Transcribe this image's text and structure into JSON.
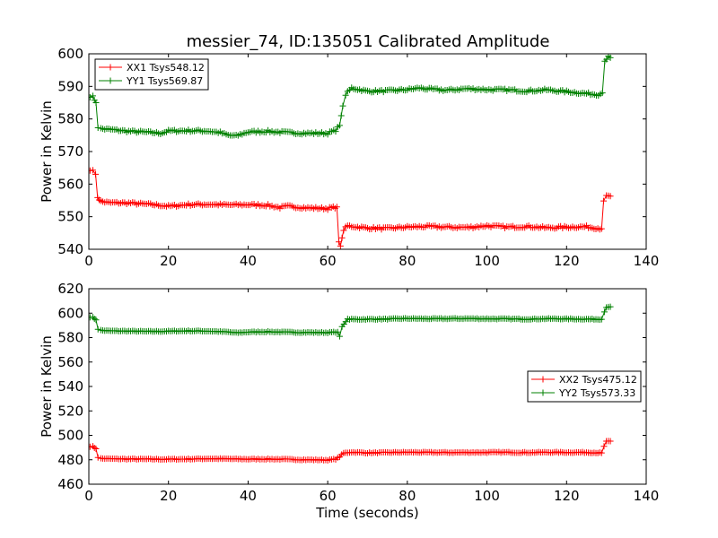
{
  "title": "messier_74, ID:135051 Calibrated Amplitude",
  "colors": {
    "red": "#ff0000",
    "green": "#008000"
  },
  "chart_data": [
    {
      "type": "line",
      "xlim": [
        0,
        140
      ],
      "ylim": [
        540,
        600
      ],
      "xticks": [
        "0",
        "20",
        "40",
        "60",
        "80",
        "100",
        "120",
        "140"
      ],
      "yticks": [
        "540",
        "550",
        "560",
        "570",
        "580",
        "590",
        "600"
      ],
      "xlabel": "",
      "ylabel": "Power in Kelvin",
      "legend_position": "top-left",
      "series": [
        {
          "name": "XX1 Tsys548.12",
          "color": "#ff0000",
          "points": [
            [
              0.3,
              564.5
            ],
            [
              1,
              564
            ],
            [
              1.7,
              563
            ],
            [
              2.2,
              556
            ],
            [
              3,
              554.7
            ],
            [
              5,
              554.3
            ],
            [
              10,
              554.2
            ],
            [
              15,
              553.8
            ],
            [
              18,
              553.5
            ],
            [
              20,
              553.2
            ],
            [
              25,
              553.7
            ],
            [
              30,
              553.8
            ],
            [
              35,
              553.6
            ],
            [
              40,
              553.7
            ],
            [
              45,
              553.5
            ],
            [
              48,
              552.8
            ],
            [
              50,
              553.2
            ],
            [
              55,
              552.7
            ],
            [
              60,
              552.5
            ],
            [
              62.3,
              553
            ],
            [
              62.8,
              542
            ],
            [
              63.2,
              541
            ],
            [
              64,
              546
            ],
            [
              65,
              547.2
            ],
            [
              70,
              546.5
            ],
            [
              75,
              546.4
            ],
            [
              80,
              546.8
            ],
            [
              85,
              547
            ],
            [
              90,
              546.8
            ],
            [
              95,
              546.7
            ],
            [
              100,
              547.2
            ],
            [
              105,
              546.8
            ],
            [
              110,
              547
            ],
            [
              115,
              546.6
            ],
            [
              120,
              546.8
            ],
            [
              125,
              546.9
            ],
            [
              128.8,
              546.3
            ],
            [
              129.3,
              555
            ],
            [
              130,
              556.2
            ],
            [
              131,
              556.3
            ]
          ]
        },
        {
          "name": "YY1 Tsys569.87",
          "color": "#008000",
          "points": [
            [
              0.3,
              587
            ],
            [
              1,
              586.8
            ],
            [
              1.8,
              585
            ],
            [
              2.3,
              577.5
            ],
            [
              3,
              577
            ],
            [
              5,
              576.8
            ],
            [
              10,
              576.2
            ],
            [
              15,
              575.9
            ],
            [
              18,
              575.6
            ],
            [
              20,
              576.3
            ],
            [
              25,
              576.4
            ],
            [
              30,
              576.3
            ],
            [
              33,
              575.8
            ],
            [
              35,
              575
            ],
            [
              37,
              574.8
            ],
            [
              40,
              576
            ],
            [
              45,
              576.2
            ],
            [
              50,
              575.8
            ],
            [
              55,
              575.6
            ],
            [
              60,
              575.6
            ],
            [
              62,
              576.5
            ],
            [
              63,
              578
            ],
            [
              63.8,
              584
            ],
            [
              64.5,
              587.5
            ],
            [
              66,
              589.5
            ],
            [
              70,
              588.5
            ],
            [
              75,
              588.6
            ],
            [
              80,
              589
            ],
            [
              83,
              589.5
            ],
            [
              85,
              589.2
            ],
            [
              90,
              588.8
            ],
            [
              95,
              589.3
            ],
            [
              100,
              589
            ],
            [
              105,
              588.9
            ],
            [
              110,
              588.6
            ],
            [
              115,
              588.9
            ],
            [
              120,
              588.4
            ],
            [
              125,
              587.8
            ],
            [
              128,
              587.5
            ],
            [
              129,
              588
            ],
            [
              129.6,
              598
            ],
            [
              130.5,
              599
            ],
            [
              131,
              598.8
            ]
          ]
        }
      ]
    },
    {
      "type": "line",
      "xlim": [
        0,
        140
      ],
      "ylim": [
        460,
        620
      ],
      "xticks": [
        "0",
        "20",
        "40",
        "60",
        "80",
        "100",
        "120",
        "140"
      ],
      "yticks": [
        "460",
        "480",
        "500",
        "520",
        "540",
        "560",
        "580",
        "600",
        "620"
      ],
      "xlabel": "Time (seconds)",
      "ylabel": "Power in Kelvin",
      "legend_position": "right",
      "series": [
        {
          "name": "XX2 Tsys475.12",
          "color": "#ff0000",
          "points": [
            [
              0.3,
              491
            ],
            [
              1,
              490.8
            ],
            [
              1.8,
              489
            ],
            [
              2.3,
              482
            ],
            [
              3,
              481
            ],
            [
              5,
              480.8
            ],
            [
              10,
              480.6
            ],
            [
              15,
              480.5
            ],
            [
              20,
              480.4
            ],
            [
              25,
              480.6
            ],
            [
              30,
              480.9
            ],
            [
              35,
              480.7
            ],
            [
              40,
              480.5
            ],
            [
              45,
              480.6
            ],
            [
              50,
              480.3
            ],
            [
              55,
              480
            ],
            [
              60,
              479.8
            ],
            [
              62,
              480.5
            ],
            [
              63,
              482.5
            ],
            [
              64,
              485.5
            ],
            [
              66,
              486.2
            ],
            [
              70,
              485.6
            ],
            [
              75,
              485.9
            ],
            [
              80,
              486.1
            ],
            [
              85,
              486
            ],
            [
              90,
              485.9
            ],
            [
              95,
              486
            ],
            [
              100,
              486
            ],
            [
              105,
              486.1
            ],
            [
              110,
              485.9
            ],
            [
              115,
              486.1
            ],
            [
              120,
              486
            ],
            [
              125,
              486
            ],
            [
              128.8,
              485.6
            ],
            [
              129.4,
              491
            ],
            [
              130,
              495
            ],
            [
              131,
              495.2
            ]
          ]
        },
        {
          "name": "YY2 Tsys573.33",
          "color": "#008000",
          "points": [
            [
              0.3,
              597
            ],
            [
              1,
              596.5
            ],
            [
              1.8,
              594.5
            ],
            [
              2.3,
              587
            ],
            [
              3,
              586
            ],
            [
              5,
              585.5
            ],
            [
              10,
              585.3
            ],
            [
              15,
              585
            ],
            [
              20,
              585.2
            ],
            [
              25,
              585.5
            ],
            [
              30,
              585.3
            ],
            [
              35,
              584.6
            ],
            [
              37,
              583.9
            ],
            [
              40,
              584.5
            ],
            [
              45,
              584.8
            ],
            [
              50,
              584.4
            ],
            [
              55,
              584.2
            ],
            [
              60,
              584.1
            ],
            [
              62.5,
              584.6
            ],
            [
              63,
              581
            ],
            [
              63.6,
              589
            ],
            [
              65,
              595
            ],
            [
              70,
              595
            ],
            [
              75,
              595.2
            ],
            [
              80,
              595.6
            ],
            [
              85,
              595.4
            ],
            [
              90,
              595.5
            ],
            [
              95,
              595.6
            ],
            [
              100,
              595.4
            ],
            [
              105,
              595.3
            ],
            [
              110,
              595.1
            ],
            [
              115,
              595.4
            ],
            [
              120,
              595.3
            ],
            [
              125,
              595.1
            ],
            [
              128.8,
              595
            ],
            [
              129.5,
              601
            ],
            [
              130,
              605
            ],
            [
              131,
              605.2
            ]
          ]
        }
      ]
    }
  ]
}
